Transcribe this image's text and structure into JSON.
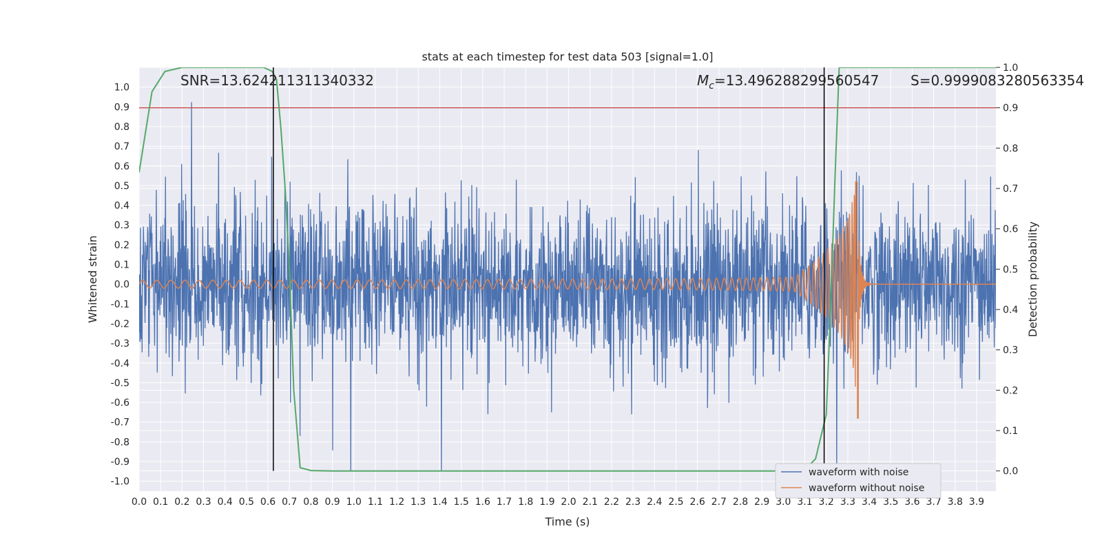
{
  "chart_data": {
    "type": "line",
    "title": "stats at each timestep for test data 503 [signal=1.0]",
    "xlabel": "Time (s)",
    "ylabel": "Whitened strain",
    "ylabel_right": "Detection probability",
    "xlim": [
      0.0,
      3.99
    ],
    "ylim": [
      -1.05,
      1.1
    ],
    "ylim_right": [
      -0.05,
      1.0
    ],
    "x_ticks": [
      "0.0",
      "0.1",
      "0.2",
      "0.3",
      "0.4",
      "0.5",
      "0.6",
      "0.7",
      "0.8",
      "0.9",
      "1.0",
      "1.1",
      "1.2",
      "1.3",
      "1.4",
      "1.5",
      "1.6",
      "1.7",
      "1.8",
      "1.9",
      "2.0",
      "2.1",
      "2.2",
      "2.3",
      "2.4",
      "2.5",
      "2.6",
      "2.7",
      "2.8",
      "2.9",
      "3.0",
      "3.1",
      "3.2",
      "3.3",
      "3.4",
      "3.5",
      "3.6",
      "3.7",
      "3.8",
      "3.9"
    ],
    "y_ticks": [
      "1.0",
      "0.9",
      "0.8",
      "0.7",
      "0.6",
      "0.5",
      "0.4",
      "0.3",
      "0.2",
      "0.1",
      "0.0",
      "-0.1",
      "-0.2",
      "-0.3",
      "-0.4",
      "-0.5",
      "-0.6",
      "-0.7",
      "-0.8",
      "-0.9",
      "-1.0"
    ],
    "y_ticks_right": [
      "1.0",
      "0.9",
      "0.8",
      "0.7",
      "0.6",
      "0.5",
      "0.4",
      "0.3",
      "0.2",
      "0.1",
      "0.0"
    ],
    "annotations": {
      "snr": "SNR=13.624211311340332",
      "mc_symbol": "M",
      "mc_sub": "c",
      "mc_value": "=13.496288299560547",
      "s": "S=0.9999083280563354"
    },
    "series": [
      {
        "name": "waveform with noise",
        "color": "#4c72b0",
        "note": "Gaussian-like noise, typical amplitude about ±0.3, peaks near ±0.8 to ±0.9"
      },
      {
        "name": "waveform without noise",
        "color": "#dd8452",
        "chirp": {
          "start_amplitude": 0.02,
          "peak_time": 3.35,
          "peak_amplitude_pos": 0.52,
          "peak_amplitude_neg": -0.68,
          "after_peak_value": 0.0
        }
      },
      {
        "axis": "right",
        "color": "#55a868",
        "x": [
          0.0,
          0.06,
          0.12,
          0.2,
          0.28,
          0.4,
          0.5,
          0.58,
          0.62,
          0.64,
          0.66,
          0.68,
          0.7,
          0.72,
          0.75,
          0.8,
          0.9,
          1.0,
          1.5,
          2.0,
          2.5,
          3.0,
          3.1,
          3.15,
          3.2,
          3.22,
          3.24,
          3.26,
          3.3,
          3.4,
          3.6,
          3.8,
          3.99
        ],
        "y": [
          0.74,
          0.94,
          0.99,
          1.0,
          1.0,
          1.0,
          1.0,
          1.0,
          0.99,
          0.97,
          0.85,
          0.7,
          0.5,
          0.2,
          0.008,
          0.001,
          0.0,
          0.0,
          0.0,
          0.0,
          0.0,
          0.0,
          0.003,
          0.03,
          0.14,
          0.4,
          0.72,
          1.0,
          1.0,
          1.0,
          1.0,
          1.0,
          1.0
        ]
      }
    ],
    "hlines": [
      {
        "axis": "right",
        "y": 0.9,
        "color": "#c44e52"
      }
    ],
    "vlines": [
      {
        "x": 0.625,
        "color": "#000000"
      },
      {
        "x": 3.19,
        "color": "#000000"
      }
    ],
    "grid": true,
    "legend_position": "bottom-right",
    "background": "#eaeaf2"
  }
}
